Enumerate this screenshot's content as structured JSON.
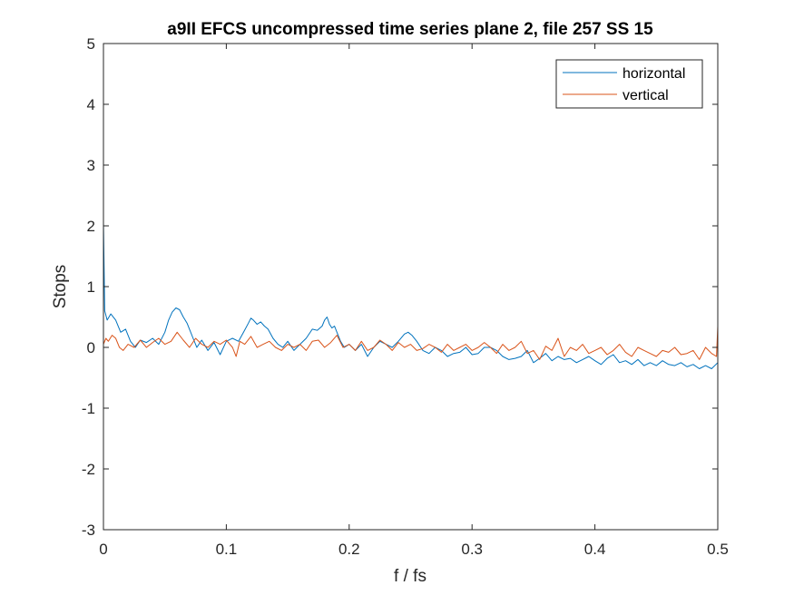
{
  "chart_data": {
    "type": "line",
    "title": "a9II EFCS uncompressed time series plane 2, file 257 SS 15",
    "xlabel": "f / fs",
    "ylabel": "Stops",
    "xlim": [
      0,
      0.5
    ],
    "ylim": [
      -3,
      5
    ],
    "xticks": [
      0,
      0.1,
      0.2,
      0.3,
      0.4,
      0.5
    ],
    "xtick_labels": [
      "0",
      "0.1",
      "0.2",
      "0.3",
      "0.4",
      "0.5"
    ],
    "yticks": [
      -3,
      -2,
      -1,
      0,
      1,
      2,
      3,
      4,
      5
    ],
    "ytick_labels": [
      "-3",
      "-2",
      "-1",
      "0",
      "1",
      "2",
      "3",
      "4",
      "5"
    ],
    "grid": false,
    "legend_position": "top-right",
    "series": [
      {
        "name": "horizontal",
        "color": "#0072BD",
        "x": [
          0,
          0.001,
          0.003,
          0.006,
          0.01,
          0.014,
          0.018,
          0.022,
          0.026,
          0.03,
          0.035,
          0.04,
          0.045,
          0.05,
          0.053,
          0.056,
          0.059,
          0.062,
          0.065,
          0.068,
          0.07,
          0.073,
          0.076,
          0.08,
          0.085,
          0.09,
          0.095,
          0.1,
          0.105,
          0.11,
          0.114,
          0.118,
          0.12,
          0.122,
          0.125,
          0.128,
          0.131,
          0.134,
          0.138,
          0.142,
          0.146,
          0.15,
          0.155,
          0.16,
          0.165,
          0.17,
          0.174,
          0.178,
          0.18,
          0.182,
          0.184,
          0.186,
          0.188,
          0.19,
          0.193,
          0.196,
          0.2,
          0.205,
          0.21,
          0.215,
          0.22,
          0.225,
          0.23,
          0.235,
          0.24,
          0.245,
          0.248,
          0.251,
          0.255,
          0.26,
          0.265,
          0.27,
          0.275,
          0.28,
          0.285,
          0.29,
          0.295,
          0.3,
          0.305,
          0.31,
          0.315,
          0.32,
          0.325,
          0.33,
          0.335,
          0.34,
          0.345,
          0.35,
          0.355,
          0.36,
          0.365,
          0.37,
          0.375,
          0.38,
          0.385,
          0.39,
          0.395,
          0.4,
          0.405,
          0.41,
          0.415,
          0.42,
          0.425,
          0.43,
          0.435,
          0.44,
          0.445,
          0.45,
          0.455,
          0.46,
          0.465,
          0.47,
          0.475,
          0.48,
          0.485,
          0.49,
          0.495,
          0.5
        ],
        "y": [
          2.05,
          0.6,
          0.45,
          0.55,
          0.45,
          0.25,
          0.3,
          0.1,
          0.0,
          0.12,
          0.08,
          0.15,
          0.05,
          0.25,
          0.45,
          0.58,
          0.65,
          0.62,
          0.5,
          0.4,
          0.3,
          0.15,
          0.0,
          0.12,
          -0.05,
          0.08,
          -0.12,
          0.1,
          0.15,
          0.1,
          0.25,
          0.4,
          0.48,
          0.45,
          0.38,
          0.42,
          0.35,
          0.3,
          0.15,
          0.05,
          0.0,
          0.1,
          -0.05,
          0.05,
          0.15,
          0.3,
          0.28,
          0.35,
          0.45,
          0.5,
          0.38,
          0.32,
          0.35,
          0.25,
          0.1,
          0.0,
          0.05,
          -0.05,
          0.05,
          -0.15,
          0.0,
          0.1,
          0.05,
          0.0,
          0.1,
          0.22,
          0.25,
          0.2,
          0.1,
          -0.05,
          -0.1,
          0.0,
          -0.05,
          -0.15,
          -0.1,
          -0.08,
          0.0,
          -0.12,
          -0.1,
          0.0,
          0.0,
          -0.05,
          -0.15,
          -0.2,
          -0.18,
          -0.15,
          -0.05,
          -0.25,
          -0.18,
          -0.1,
          -0.22,
          -0.15,
          -0.2,
          -0.18,
          -0.25,
          -0.2,
          -0.15,
          -0.22,
          -0.28,
          -0.18,
          -0.12,
          -0.25,
          -0.22,
          -0.28,
          -0.2,
          -0.3,
          -0.25,
          -0.3,
          -0.22,
          -0.28,
          -0.3,
          -0.25,
          -0.32,
          -0.28,
          -0.35,
          -0.3,
          -0.35,
          -0.25
        ]
      },
      {
        "name": "vertical",
        "color": "#D95319",
        "x": [
          0,
          0.002,
          0.004,
          0.007,
          0.01,
          0.013,
          0.016,
          0.02,
          0.025,
          0.03,
          0.035,
          0.04,
          0.045,
          0.05,
          0.055,
          0.06,
          0.065,
          0.07,
          0.075,
          0.08,
          0.085,
          0.09,
          0.095,
          0.1,
          0.105,
          0.108,
          0.111,
          0.115,
          0.12,
          0.125,
          0.13,
          0.135,
          0.14,
          0.145,
          0.15,
          0.155,
          0.16,
          0.165,
          0.17,
          0.175,
          0.18,
          0.185,
          0.19,
          0.195,
          0.2,
          0.205,
          0.21,
          0.215,
          0.22,
          0.225,
          0.23,
          0.235,
          0.24,
          0.245,
          0.25,
          0.255,
          0.26,
          0.265,
          0.27,
          0.275,
          0.28,
          0.285,
          0.29,
          0.295,
          0.3,
          0.305,
          0.31,
          0.315,
          0.32,
          0.325,
          0.33,
          0.335,
          0.34,
          0.345,
          0.35,
          0.355,
          0.36,
          0.365,
          0.37,
          0.375,
          0.38,
          0.385,
          0.39,
          0.395,
          0.4,
          0.405,
          0.41,
          0.415,
          0.42,
          0.425,
          0.43,
          0.435,
          0.44,
          0.445,
          0.45,
          0.455,
          0.46,
          0.465,
          0.47,
          0.475,
          0.48,
          0.485,
          0.49,
          0.495,
          0.499,
          0.5
        ],
        "y": [
          0.05,
          0.15,
          0.1,
          0.2,
          0.15,
          0.0,
          -0.05,
          0.05,
          0.0,
          0.12,
          0.0,
          0.08,
          0.15,
          0.05,
          0.1,
          0.25,
          0.12,
          0.0,
          0.15,
          0.05,
          0.0,
          0.1,
          0.05,
          0.12,
          0.0,
          -0.15,
          0.1,
          0.05,
          0.18,
          0.0,
          0.05,
          0.1,
          0.0,
          -0.05,
          0.05,
          0.0,
          0.05,
          -0.05,
          0.1,
          0.12,
          0.0,
          0.08,
          0.2,
          0.0,
          0.05,
          -0.05,
          0.1,
          -0.05,
          0.0,
          0.12,
          0.05,
          -0.05,
          0.08,
          0.0,
          0.05,
          -0.05,
          -0.02,
          0.05,
          0.0,
          -0.08,
          0.05,
          -0.05,
          0.0,
          0.05,
          -0.05,
          0.0,
          0.08,
          0.0,
          -0.1,
          0.05,
          -0.05,
          0.0,
          0.1,
          -0.1,
          -0.05,
          -0.2,
          0.02,
          -0.05,
          0.15,
          -0.15,
          0.0,
          -0.05,
          0.05,
          -0.1,
          -0.05,
          0.0,
          -0.12,
          -0.05,
          0.05,
          -0.08,
          -0.15,
          0.0,
          -0.05,
          -0.1,
          -0.15,
          -0.05,
          -0.08,
          0.0,
          -0.12,
          -0.1,
          -0.05,
          -0.2,
          0.0,
          -0.1,
          -0.15,
          0.35
        ]
      }
    ]
  }
}
